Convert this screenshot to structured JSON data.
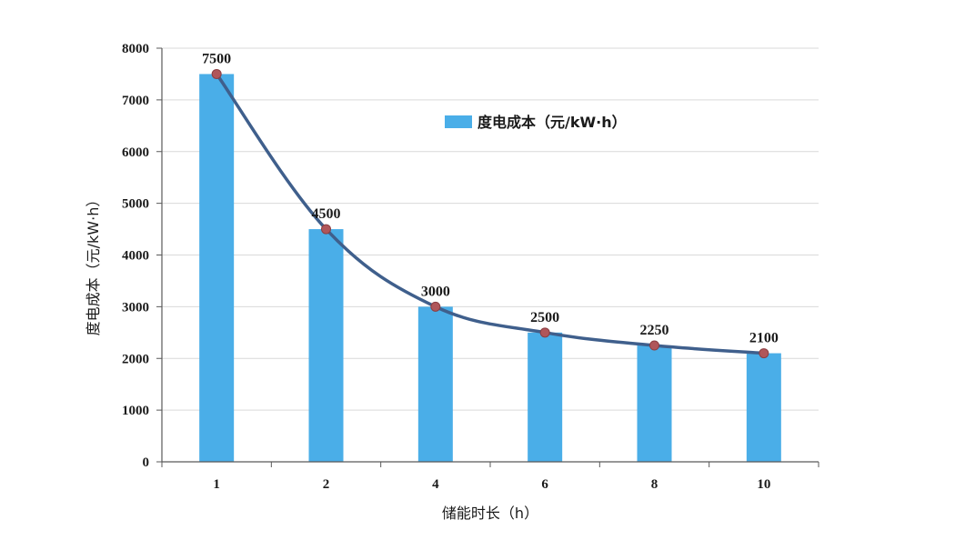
{
  "chart_data": {
    "type": "bar",
    "categories": [
      "1",
      "2",
      "4",
      "6",
      "8",
      "10"
    ],
    "values": [
      7500,
      4500,
      3000,
      2500,
      2250,
      2100
    ],
    "series": [
      {
        "name": "度电成本（元/kW·h）",
        "values": [
          7500,
          4500,
          3000,
          2500,
          2250,
          2100
        ]
      }
    ],
    "overlay": "smoothed trend line with circular markers at each bar value",
    "title": "",
    "xlabel": "储能时长（h）",
    "ylabel": "度电成本（元/kW·h）",
    "ylim": [
      0,
      8000
    ],
    "yticks": [
      "0",
      "1000",
      "2000",
      "3000",
      "4000",
      "5000",
      "6000",
      "7000",
      "8000"
    ],
    "grid": true,
    "legend_position": "top-right",
    "colors": {
      "bar": "#4aaee8",
      "line": "#3f5f8c",
      "marker": "#b0565a",
      "grid": "#d9d9d9",
      "axis": "#595959"
    }
  }
}
